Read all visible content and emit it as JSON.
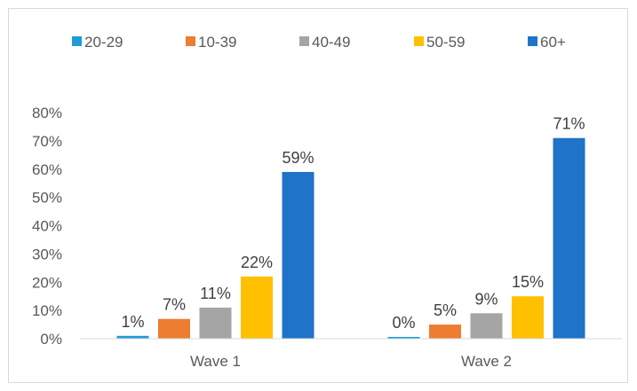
{
  "chart_data": {
    "type": "bar",
    "categories": [
      "Wave 1",
      "Wave 2"
    ],
    "series": [
      {
        "name": "20-29",
        "color": "#1f9bd7",
        "values": [
          1,
          0
        ]
      },
      {
        "name": "10-39",
        "color": "#ed7d31",
        "values": [
          7,
          5
        ]
      },
      {
        "name": "40-49",
        "color": "#a5a5a5",
        "values": [
          11,
          9
        ]
      },
      {
        "name": "50-59",
        "color": "#ffc000",
        "values": [
          22,
          15
        ]
      },
      {
        "name": "60+",
        "color": "#1f73c8",
        "values": [
          59,
          71
        ]
      }
    ],
    "data_labels": [
      [
        "1%",
        "0%"
      ],
      [
        "7%",
        "5%"
      ],
      [
        "11%",
        "9%"
      ],
      [
        "22%",
        "15%"
      ],
      [
        "59%",
        "71%"
      ]
    ],
    "y_ticks": [
      "0%",
      "10%",
      "20%",
      "30%",
      "40%",
      "50%",
      "60%",
      "70%",
      "80%"
    ],
    "ylim": [
      0,
      80
    ],
    "legend_position": "top",
    "grid": false,
    "title": "",
    "xlabel": "",
    "ylabel": ""
  }
}
